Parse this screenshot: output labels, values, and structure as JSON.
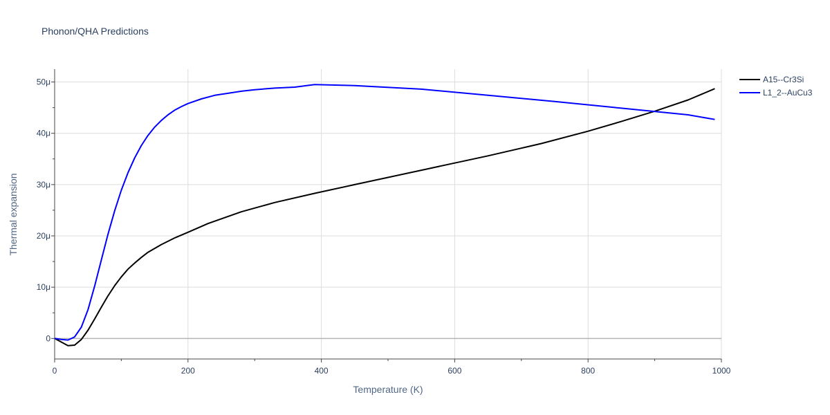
{
  "chart_data": {
    "type": "line",
    "title": "Phonon/QHA Predictions",
    "xlabel": "Temperature (K)",
    "ylabel": "Thermal expansion",
    "xlim": [
      0,
      1000
    ],
    "ylim": [
      -4e-06,
      5.25e-05
    ],
    "x_ticks": [
      0,
      200,
      400,
      600,
      800,
      1000
    ],
    "x_tick_labels": [
      "0",
      "200",
      "400",
      "600",
      "800",
      "1000"
    ],
    "y_ticks": [
      0,
      1e-05,
      2e-05,
      3e-05,
      4e-05,
      5e-05
    ],
    "y_tick_labels": [
      "0",
      "10μ",
      "20μ",
      "30μ",
      "40μ",
      "50μ"
    ],
    "grid": true,
    "legend_position": "top-right",
    "series": [
      {
        "name": "A15--Cr3Si",
        "color": "#000000",
        "x": [
          0,
          10,
          20,
          30,
          40,
          50,
          60,
          70,
          80,
          90,
          100,
          110,
          120,
          130,
          140,
          160,
          180,
          200,
          230,
          280,
          330,
          390,
          450,
          500,
          550,
          600,
          650,
          700,
          730,
          800,
          850,
          900,
          950,
          990
        ],
        "y": [
          0,
          -7e-07,
          -1.4e-06,
          -1.3e-06,
          -2e-07,
          1.6e-06,
          3.8e-06,
          6.1e-06,
          8.3e-06,
          1.03e-05,
          1.2e-05,
          1.35e-05,
          1.47e-05,
          1.58e-05,
          1.68e-05,
          1.83e-05,
          1.96e-05,
          2.07e-05,
          2.24e-05,
          2.47e-05,
          2.65e-05,
          2.83e-05,
          3e-05,
          3.14e-05,
          3.28e-05,
          3.42e-05,
          3.56e-05,
          3.71e-05,
          3.8e-05,
          4.04e-05,
          4.23e-05,
          4.43e-05,
          4.65e-05,
          4.87e-05
        ]
      },
      {
        "name": "L1_2--AuCu3",
        "color": "#0000ff",
        "x": [
          0,
          10,
          20,
          30,
          40,
          50,
          60,
          70,
          80,
          90,
          100,
          110,
          120,
          130,
          140,
          150,
          160,
          170,
          180,
          190,
          200,
          220,
          240,
          260,
          280,
          300,
          330,
          360,
          390,
          450,
          550,
          650,
          750,
          850,
          950,
          990
        ],
        "y": [
          0,
          -2e-07,
          -3e-07,
          3e-07,
          2.2e-06,
          5.6e-06,
          1.02e-05,
          1.53e-05,
          2.03e-05,
          2.49e-05,
          2.89e-05,
          3.23e-05,
          3.52e-05,
          3.76e-05,
          3.96e-05,
          4.12e-05,
          4.25e-05,
          4.36e-05,
          4.45e-05,
          4.52e-05,
          4.58e-05,
          4.67e-05,
          4.74e-05,
          4.78e-05,
          4.82e-05,
          4.85e-05,
          4.88e-05,
          4.9e-05,
          4.95e-05,
          4.93e-05,
          4.86e-05,
          4.74e-05,
          4.62e-05,
          4.49e-05,
          4.36e-05,
          4.27e-05
        ]
      }
    ]
  }
}
